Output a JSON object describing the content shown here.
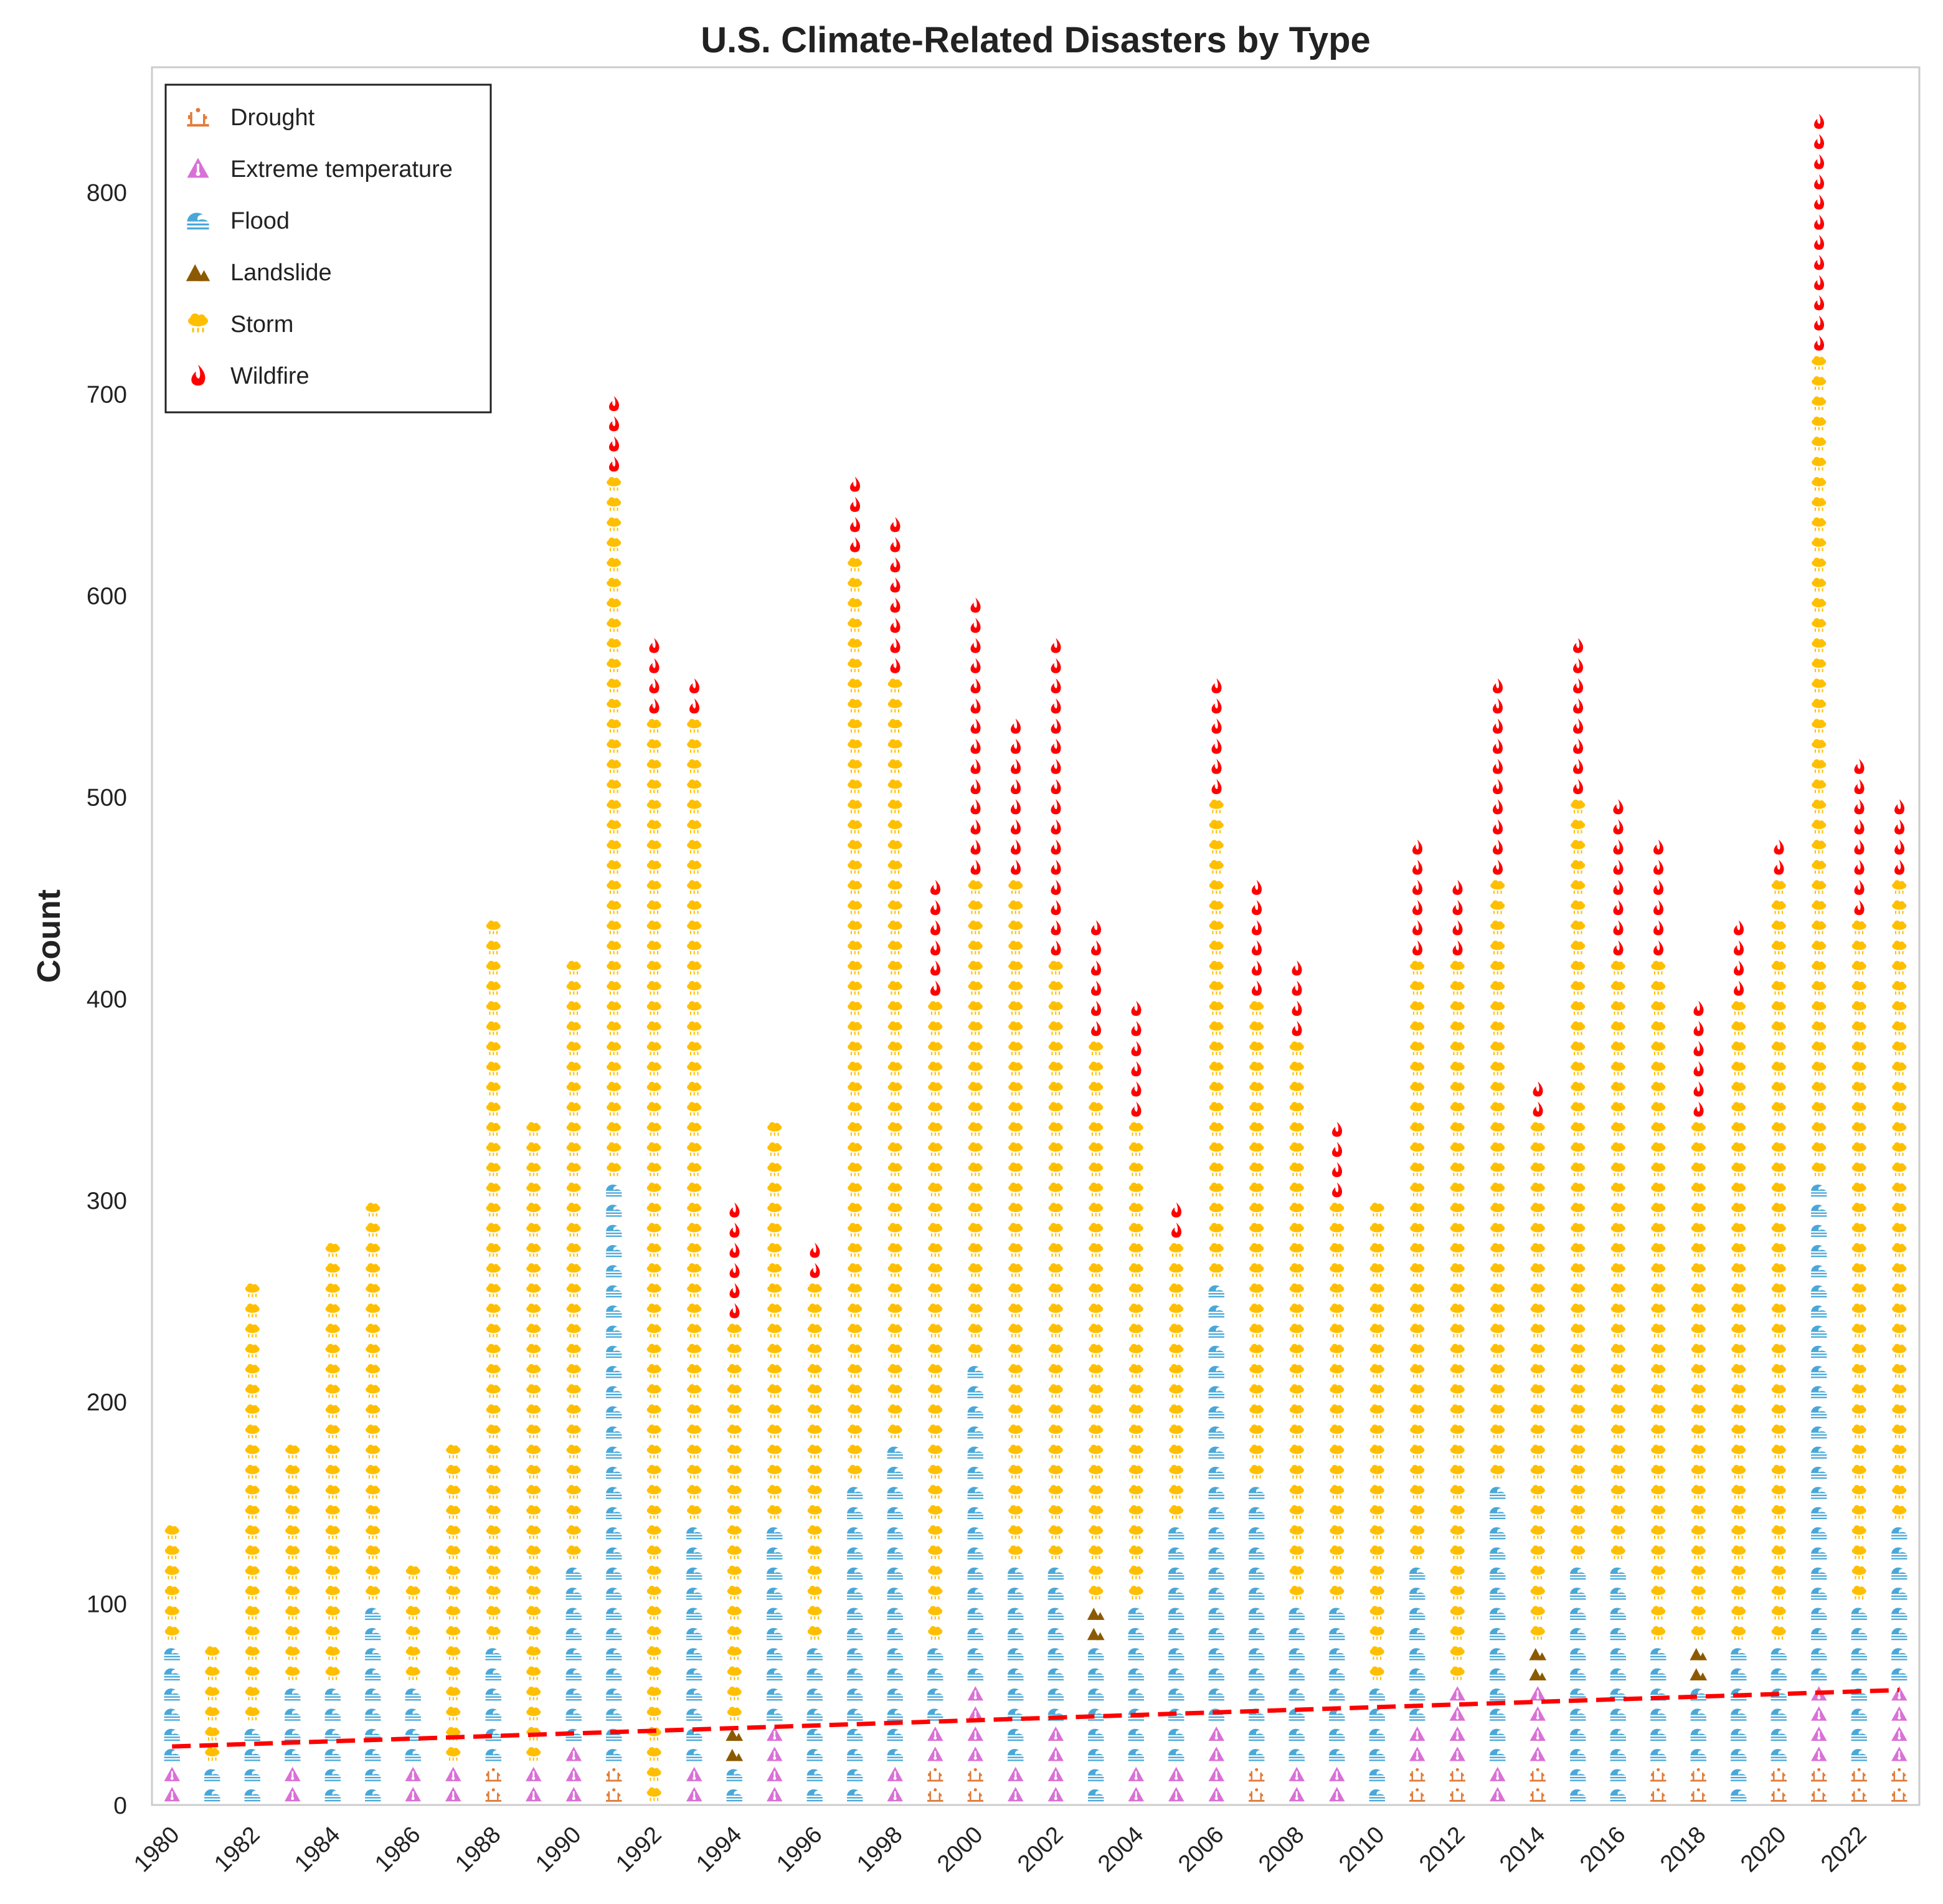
{
  "colors": {
    "Drought": "#E07B39",
    "Extreme temperature": "#DA70D6",
    "Flood": "#4AA8D8",
    "Landslide": "#8B5A00",
    "Storm": "#FFBF00",
    "Wildfire": "#FF0000",
    "trend": "#FF0000",
    "frame": "#CCCCCC"
  },
  "icons": {
    "Drought": "desert-cactus-icon",
    "Extreme temperature": "thermometer-warning-icon",
    "Flood": "wave-icon",
    "Landslide": "mountain-icon",
    "Storm": "storm-cloud-icon",
    "Wildfire": "flame-icon"
  },
  "chart_data": {
    "type": "bar",
    "subtype": "stacked pictogram (waffle) columns",
    "title": "U.S. Climate-Related Disasters by Type",
    "xlabel": "",
    "ylabel": "Count",
    "ylim": [
      0,
      862
    ],
    "yticks": [
      0,
      100,
      200,
      300,
      400,
      500,
      600,
      700,
      800
    ],
    "xlim": [
      1979.5,
      2023.5
    ],
    "xticks": [
      1980,
      1982,
      1984,
      1986,
      1988,
      1990,
      1992,
      1994,
      1996,
      1998,
      2000,
      2002,
      2004,
      2006,
      2008,
      2010,
      2012,
      2014,
      2016,
      2018,
      2020,
      2022
    ],
    "grid": false,
    "legend_placement": "top-left",
    "legend": [
      "Drought",
      "Extreme temperature",
      "Flood",
      "Landslide",
      "Storm",
      "Wildfire"
    ],
    "icon_unit": 10,
    "years": [
      1980,
      1981,
      1982,
      1983,
      1984,
      1985,
      1986,
      1987,
      1988,
      1989,
      1990,
      1991,
      1992,
      1993,
      1994,
      1995,
      1996,
      1997,
      1998,
      1999,
      2000,
      2001,
      2002,
      2003,
      2004,
      2005,
      2006,
      2007,
      2008,
      2009,
      2010,
      2011,
      2012,
      2013,
      2014,
      2015,
      2016,
      2017,
      2018,
      2019,
      2020,
      2021,
      2022,
      2023
    ],
    "series": [
      {
        "name": "Drought",
        "values": [
          0,
          0,
          0,
          0,
          0,
          0,
          0,
          0,
          20,
          0,
          0,
          20,
          0,
          0,
          0,
          0,
          0,
          0,
          0,
          20,
          20,
          0,
          0,
          0,
          0,
          0,
          0,
          20,
          0,
          0,
          0,
          20,
          20,
          0,
          20,
          0,
          0,
          20,
          20,
          0,
          20,
          20,
          20,
          20
        ]
      },
      {
        "name": "Extreme temperature",
        "values": [
          20,
          0,
          0,
          20,
          0,
          0,
          20,
          20,
          0,
          20,
          30,
          0,
          0,
          20,
          0,
          40,
          0,
          0,
          20,
          20,
          40,
          20,
          40,
          0,
          20,
          20,
          40,
          0,
          20,
          20,
          0,
          20,
          40,
          20,
          40,
          0,
          0,
          0,
          0,
          0,
          0,
          40,
          0,
          40
        ]
      },
      {
        "name": "Flood",
        "values": [
          60,
          20,
          40,
          40,
          60,
          100,
          40,
          0,
          60,
          0,
          90,
          290,
          0,
          120,
          20,
          100,
          80,
          160,
          160,
          40,
          160,
          100,
          80,
          80,
          80,
          120,
          220,
          140,
          80,
          80,
          60,
          80,
          0,
          140,
          0,
          120,
          120,
          60,
          40,
          80,
          60,
          250,
          80,
          80
        ]
      },
      {
        "name": "Landslide",
        "values": [
          0,
          0,
          0,
          0,
          0,
          0,
          0,
          0,
          0,
          0,
          0,
          0,
          0,
          0,
          20,
          0,
          0,
          0,
          0,
          0,
          0,
          0,
          0,
          20,
          0,
          0,
          0,
          0,
          0,
          0,
          0,
          0,
          0,
          0,
          20,
          0,
          0,
          0,
          20,
          0,
          0,
          0,
          0,
          0
        ]
      },
      {
        "name": "Storm",
        "values": [
          60,
          60,
          220,
          120,
          220,
          200,
          60,
          160,
          360,
          320,
          300,
          350,
          540,
          400,
          200,
          200,
          180,
          460,
          380,
          320,
          240,
          340,
          300,
          280,
          240,
          140,
          240,
          240,
          280,
          200,
          240,
          300,
          360,
          300,
          260,
          380,
          300,
          340,
          260,
          320,
          380,
          410,
          340,
          320
        ]
      },
      {
        "name": "Wildfire",
        "values": [
          0,
          0,
          0,
          0,
          0,
          0,
          0,
          0,
          0,
          0,
          0,
          40,
          40,
          20,
          60,
          0,
          20,
          40,
          80,
          60,
          140,
          80,
          160,
          60,
          60,
          20,
          60,
          60,
          40,
          40,
          0,
          60,
          40,
          100,
          20,
          80,
          80,
          60,
          60,
          40,
          20,
          120,
          80,
          40
        ]
      }
    ],
    "trend_line": {
      "style": "dashed",
      "x": [
        1980,
        2023
      ],
      "y": [
        29,
        57
      ]
    }
  }
}
